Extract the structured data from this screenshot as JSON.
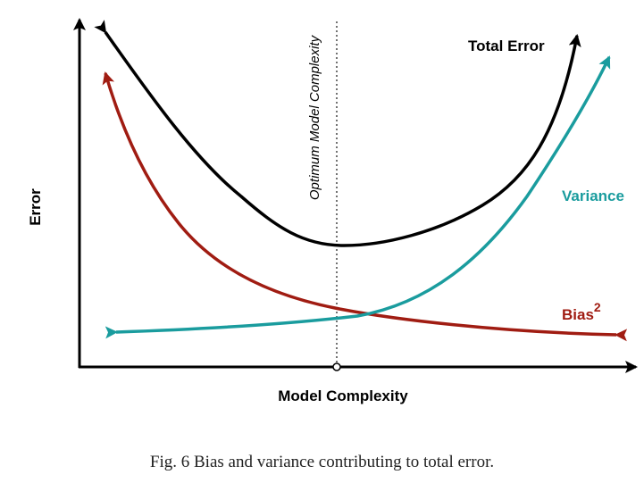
{
  "diagram": {
    "x_axis_label": "Model Complexity",
    "y_axis_label": "Error",
    "optimum_label": "Optimum Model Complexity",
    "curves": {
      "total_error": {
        "label": "Total Error",
        "color": "#000000"
      },
      "variance": {
        "label": "Variance",
        "color": "#1a9c9e"
      },
      "bias": {
        "label": "Bias",
        "superscript": "2",
        "color": "#a01c12"
      }
    }
  },
  "caption": "Fig. 6 Bias and variance contributing to total error."
}
